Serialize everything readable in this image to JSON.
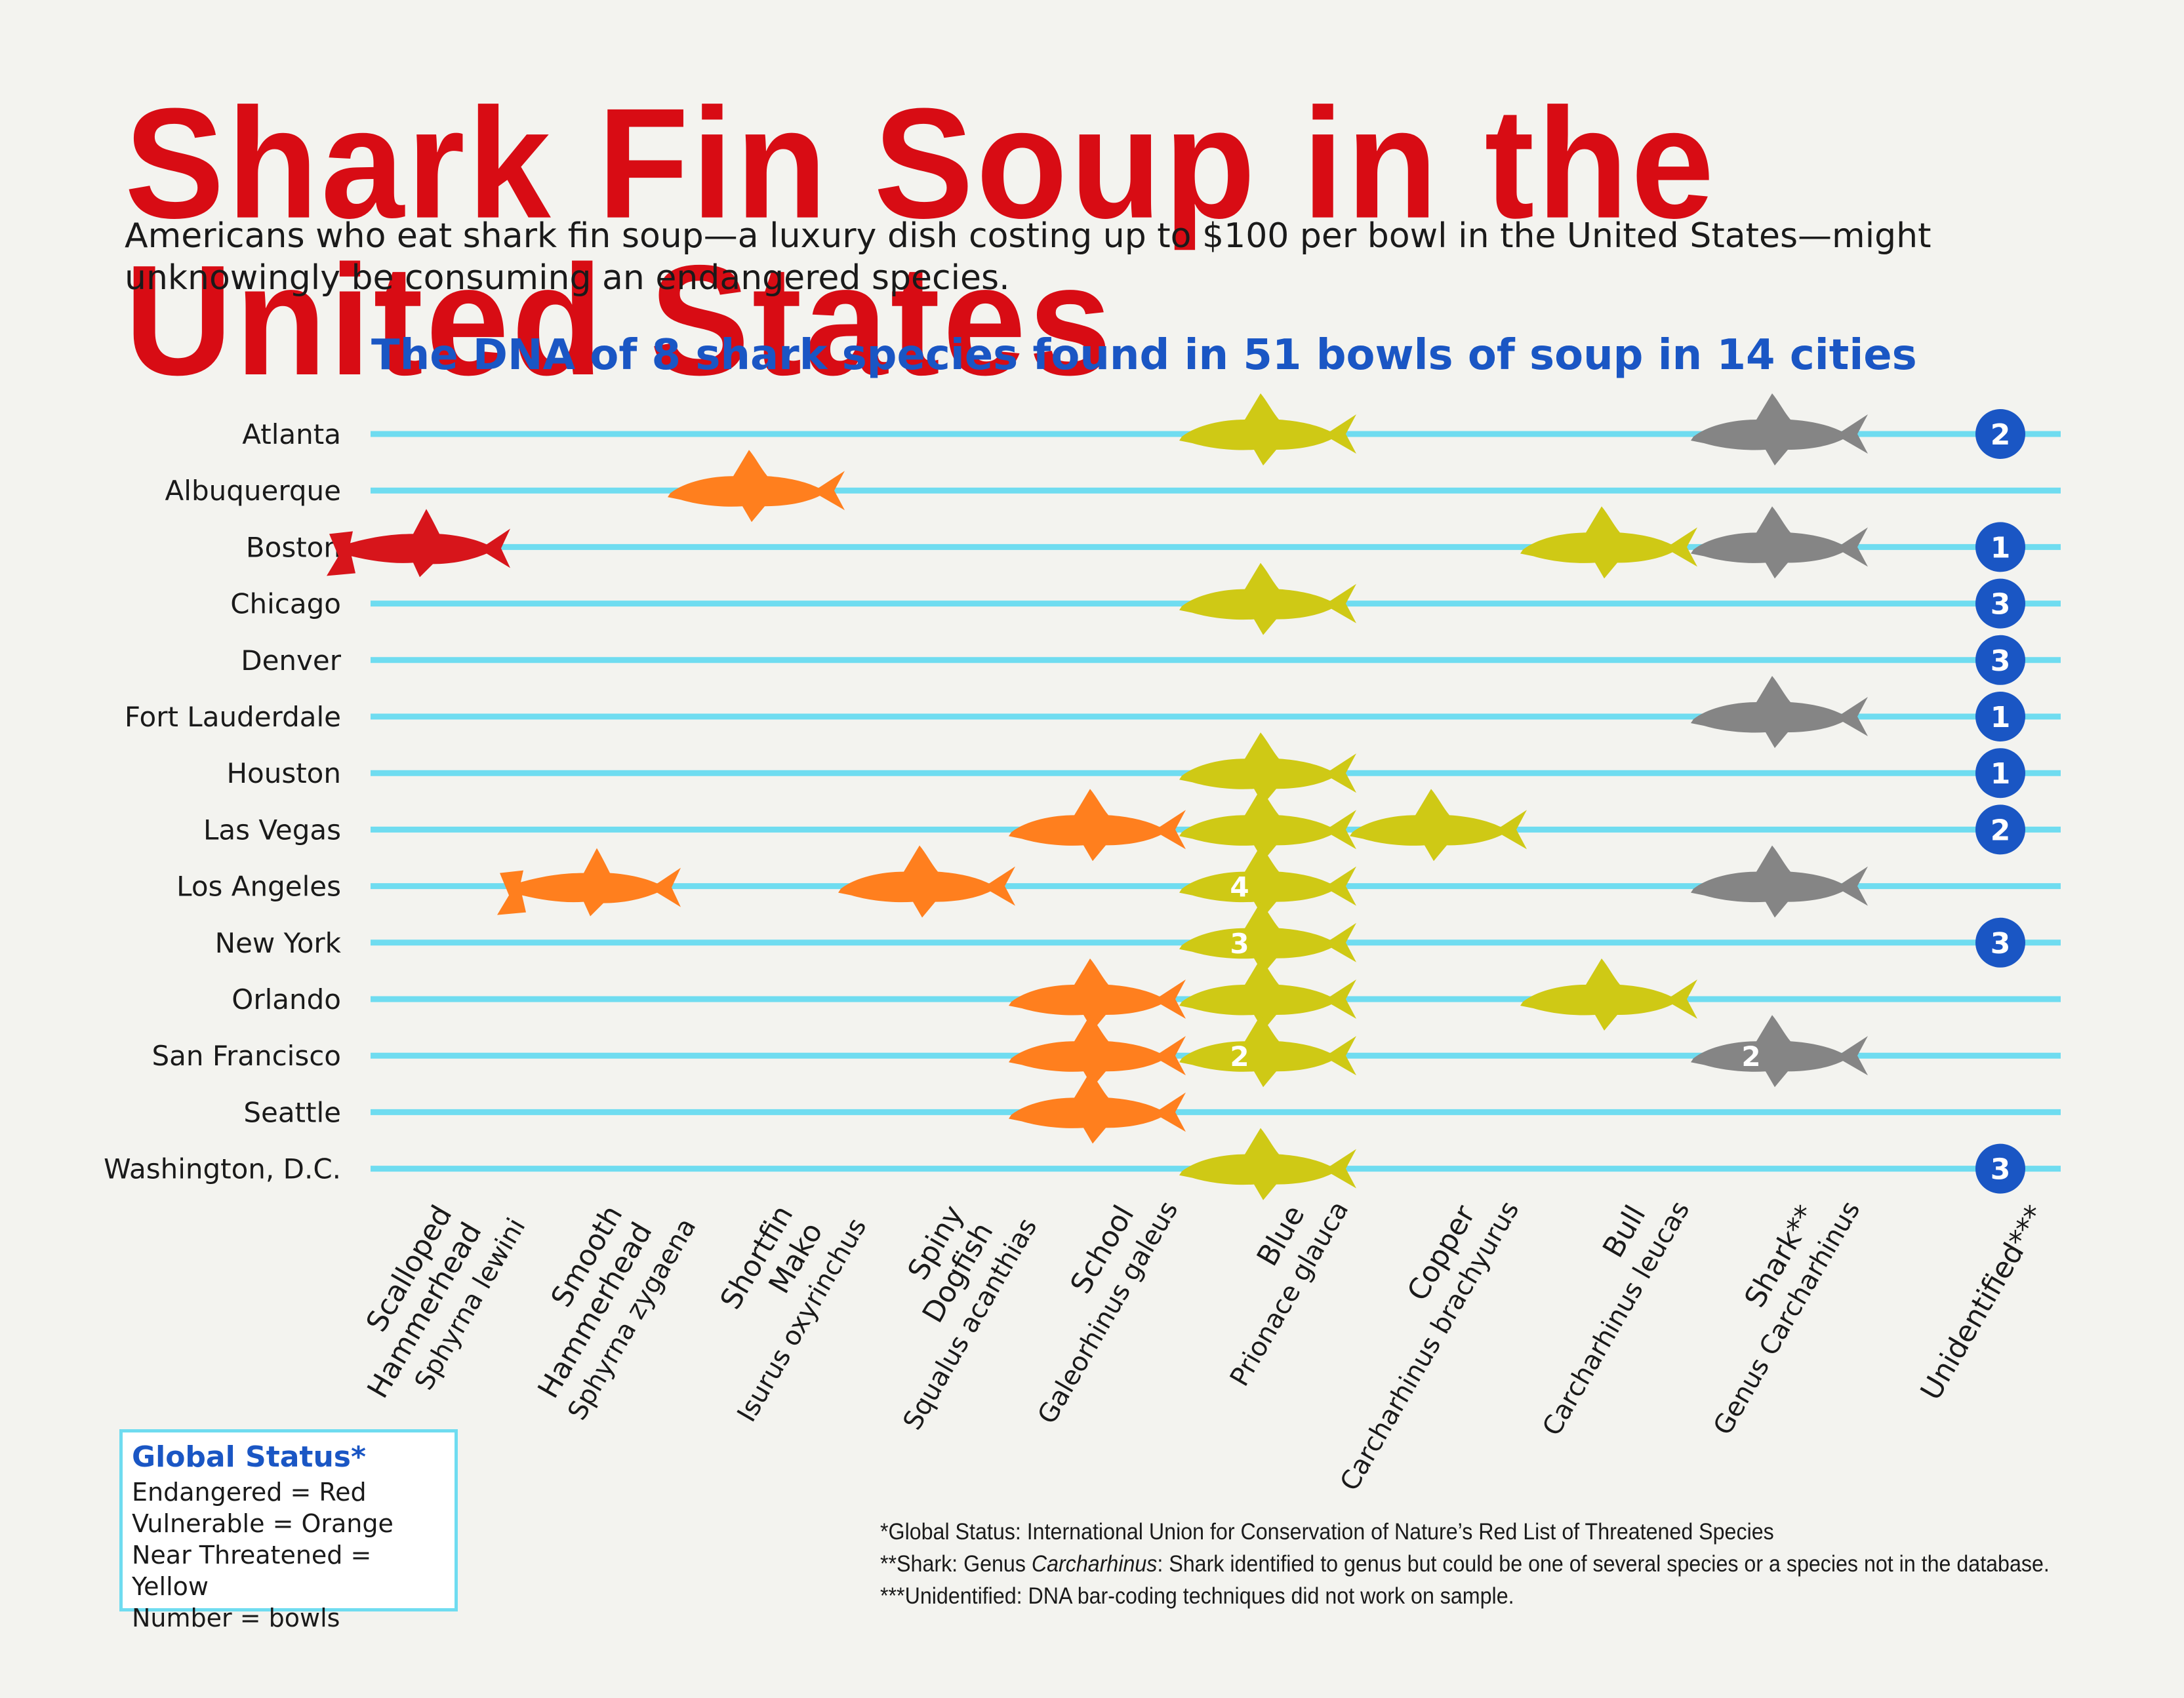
{
  "header": {
    "title": "Shark Fin Soup in the United States",
    "intro": "Americans who eat shark fin soup—a luxury dish costing up to $100 per bowl in the United States—might unknowingly be consuming an endangered species."
  },
  "chart_data": {
    "type": "table",
    "title": "The DNA of 8 shark species found in 51 bowls of soup in 14 cities",
    "cities": [
      "Atlanta",
      "Albuquerque",
      "Boston",
      "Chicago",
      "Denver",
      "Fort Lauderdale",
      "Houston",
      "Las Vegas",
      "Los Angeles",
      "New York",
      "Orlando",
      "San Francisco",
      "Seattle",
      "Washington, D.C."
    ],
    "species": [
      {
        "name": "Scalloped Hammerhead",
        "sci": "Sphyrna lewini",
        "status": "Endangered",
        "color": "#d7151b",
        "shape": "hammerhead"
      },
      {
        "name": "Smooth Hammerhead",
        "sci": "Sphyrna zygaena",
        "status": "Vulnerable",
        "color": "#ff7f1e",
        "shape": "hammerhead"
      },
      {
        "name": "Shortfin Mako",
        "sci": "Isurus oxyrinchus",
        "status": "Vulnerable",
        "color": "#ff7f1e",
        "shape": "shark"
      },
      {
        "name": "Spiny Dogfish",
        "sci": "Squalus acanthias",
        "status": "Vulnerable",
        "color": "#ff7f1e",
        "shape": "shark"
      },
      {
        "name": "School",
        "sci": "Galeorhinus galeus",
        "status": "Vulnerable",
        "color": "#ff7f1e",
        "shape": "shark"
      },
      {
        "name": "Blue",
        "sci": "Prionace glauca",
        "status": "Near Threatened",
        "color": "#cfc915",
        "shape": "shark"
      },
      {
        "name": "Copper",
        "sci": "Carcharhinus brachyurus",
        "status": "Near Threatened",
        "color": "#cfc915",
        "shape": "shark"
      },
      {
        "name": "Bull",
        "sci": "Carcharhinus leucas",
        "status": "Near Threatened",
        "color": "#cfc915",
        "shape": "shark"
      },
      {
        "name": "Shark**",
        "sci": "Genus Carcharhinus",
        "status": "",
        "color": "#858585",
        "shape": "shark"
      },
      {
        "name": "Unidentified***",
        "sci": "",
        "status": "",
        "color": "#1a56c4",
        "shape": "circle"
      }
    ],
    "bowls": [
      [
        0,
        0,
        0,
        0,
        0,
        1,
        0,
        0,
        1,
        2
      ],
      [
        0,
        0,
        1,
        0,
        0,
        0,
        0,
        0,
        0,
        0
      ],
      [
        1,
        0,
        0,
        0,
        0,
        0,
        0,
        1,
        1,
        1
      ],
      [
        0,
        0,
        0,
        0,
        0,
        1,
        0,
        0,
        0,
        3
      ],
      [
        0,
        0,
        0,
        0,
        0,
        0,
        0,
        0,
        0,
        3
      ],
      [
        0,
        0,
        0,
        0,
        0,
        0,
        0,
        0,
        1,
        1
      ],
      [
        0,
        0,
        0,
        0,
        0,
        1,
        0,
        0,
        0,
        1
      ],
      [
        0,
        0,
        0,
        0,
        1,
        1,
        1,
        0,
        0,
        2
      ],
      [
        0,
        1,
        0,
        1,
        0,
        4,
        0,
        0,
        1,
        0
      ],
      [
        0,
        0,
        0,
        0,
        0,
        3,
        0,
        0,
        0,
        3
      ],
      [
        0,
        0,
        0,
        0,
        1,
        1,
        0,
        1,
        0,
        0
      ],
      [
        0,
        0,
        0,
        0,
        1,
        2,
        0,
        0,
        2,
        0
      ],
      [
        0,
        0,
        0,
        0,
        1,
        0,
        0,
        0,
        0,
        0
      ],
      [
        0,
        0,
        0,
        0,
        0,
        1,
        0,
        0,
        0,
        3
      ]
    ]
  },
  "legend": {
    "title": "Global Status*",
    "lines": [
      "Endangered = Red",
      "Vulnerable = Orange",
      "Near Threatened = Yellow",
      "Number = bowls"
    ]
  },
  "notes": {
    "note1": "*Global Status: International Union for Conservation of Nature’s Red List of Threatened Species",
    "note2_prefix": "**Shark: Genus ",
    "note2_genus": "Carcharhinus",
    "note2_suffix": ": Shark identified to genus but could be one of several species or a species not in the database.",
    "note3": "***Unidentified: DNA bar-coding techniques did not work on sample."
  },
  "colors": {
    "title": "#d80c14",
    "accent_blue": "#1a56c4",
    "line": "#6fdcf0"
  }
}
